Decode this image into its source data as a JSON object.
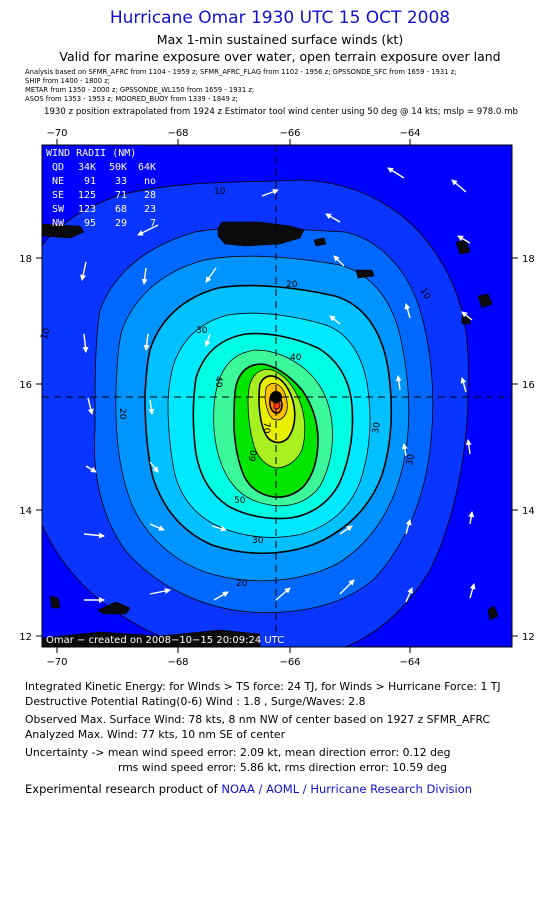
{
  "header": {
    "title": "Hurricane Omar 1930 UTC 15 OCT 2008",
    "subtitle": "Max 1-min sustained surface winds (kt)",
    "validity": "Valid for marine exposure over water, open terrain exposure over land"
  },
  "sources": [
    "Analysis based on  SFMR_AFRC from 1104 - 1959 z;  SFMR_AFRC_FLAG from 1102 - 1956 z;  GPSSONDE_SFC from 1659 - 1931 z;",
    "SHIP from 1400 - 1800 z;",
    "METAR from 1350 - 2000 z;  GPSSONDE_WL150 from 1659 - 1931 z;",
    "ASOS from 1353 - 1953 z;  MOORED_BUOY from 1339 - 1849 z;"
  ],
  "position_note": "1930 z position extrapolated from 1924 z Estimator tool wind center using 50 deg @ 14 kts; mslp = 978.0 mb",
  "map": {
    "lon_ticks": [
      "−70",
      "−68",
      "−66",
      "−64"
    ],
    "lat_ticks": [
      "18",
      "16",
      "14",
      "12"
    ],
    "lon_range": [
      -70.3,
      -62.0
    ],
    "lat_range": [
      11.8,
      19.8
    ],
    "center": {
      "lon": -66.0,
      "lat": 15.8
    },
    "contour_labels": [
      "10",
      "10",
      "10",
      "20",
      "20",
      "20",
      "30",
      "30",
      "30",
      "30",
      "40",
      "40",
      "50",
      "60",
      "70"
    ],
    "colors": {
      "frame_bg": "#0000ff",
      "crosshair": "#000000",
      "arrows": "#ffffff",
      "land": "#0b0b0b"
    },
    "credit": "Omar − created on 2008−10−15 20:09:24 UTC"
  },
  "wind_radii": {
    "title": "WIND RADII (NM)",
    "header": [
      "QD",
      "34K",
      "50K",
      "64K"
    ],
    "rows": [
      [
        "NE",
        "91",
        "33",
        "no"
      ],
      [
        "SE",
        "125",
        "71",
        "28"
      ],
      [
        "SW",
        "123",
        "68",
        "23"
      ],
      [
        "NW",
        "95",
        "29",
        "7"
      ]
    ]
  },
  "stats": {
    "ike": "Integrated Kinetic Energy:  for Winds > TS force: 24 TJ,  for Winds > Hurricane Force: 1 TJ",
    "dpr": "Destructive Potential Rating(0-6)   Wind : 1.8 , Surge/Waves: 2.8",
    "observed_max": "Observed Max. Surface Wind: 78 kts, 8 nm NW of center based on 1927 z SFMR_AFRC",
    "analyzed_max": "Analyzed Max. Wind: 77 kts, 10 nm SE of center",
    "uncertainty_1": "Uncertainty -> mean wind speed error: 2.09 kt,   mean direction error: 0.12 deg",
    "uncertainty_2": "rms wind speed error: 5.86 kt,   rms direction error: 10.59 deg",
    "credit_prefix": "Experimental research product of ",
    "credit_link": "NOAA / AOML / Hurricane Research Division"
  }
}
